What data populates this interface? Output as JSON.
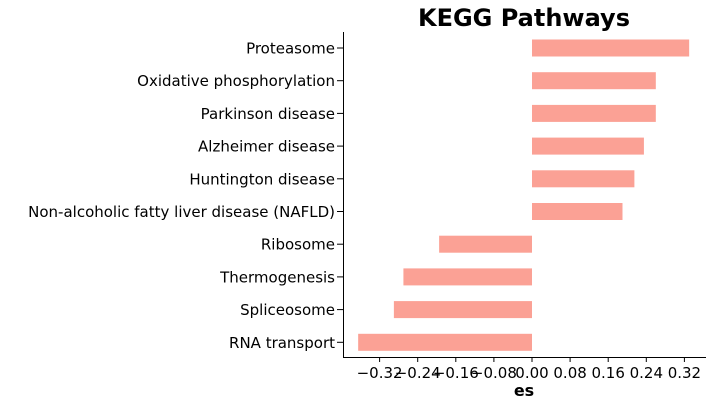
{
  "chart_data": {
    "type": "bar",
    "orientation": "horizontal",
    "title": "KEGG Pathways",
    "xlabel": "es",
    "ylabel": "",
    "xlim": [
      -0.365,
      0.365
    ],
    "xticks": [
      -0.32,
      -0.24,
      -0.16,
      -0.08,
      0.0,
      0.08,
      0.16,
      0.24,
      0.32
    ],
    "xtick_labels": [
      "−0.32",
      "−0.24",
      "−0.16",
      "−0.08",
      "0.00",
      "0.08",
      "0.16",
      "0.24",
      "0.32"
    ],
    "categories": [
      "Proteasome",
      "Oxidative phosphorylation",
      "Parkinson disease",
      "Alzheimer disease",
      "Huntington disease",
      "Non-alcoholic fatty liver disease (NAFLD)",
      "Ribosome",
      "Thermogenesis",
      "Spliceosome",
      "RNA transport"
    ],
    "values": [
      0.33,
      0.26,
      0.26,
      0.235,
      0.215,
      0.19,
      -0.195,
      -0.27,
      -0.29,
      -0.365
    ],
    "bar_color": "#fba195",
    "grid": false,
    "legend": "none"
  }
}
